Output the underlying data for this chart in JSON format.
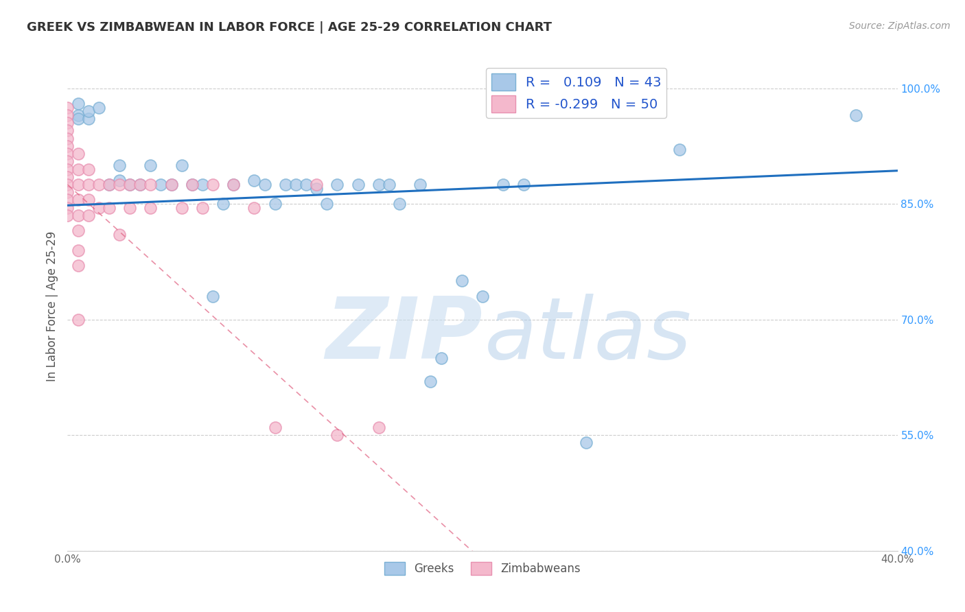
{
  "title": "GREEK VS ZIMBABWEAN IN LABOR FORCE | AGE 25-29 CORRELATION CHART",
  "source": "Source: ZipAtlas.com",
  "ylabel": "In Labor Force | Age 25-29",
  "xlim": [
    0.0,
    0.4
  ],
  "ylim": [
    0.4,
    1.035
  ],
  "yticks": [
    1.0,
    0.85,
    0.7,
    0.55,
    0.4
  ],
  "ytick_labels": [
    "100.0%",
    "85.0%",
    "70.0%",
    "55.0%",
    "40.0%"
  ],
  "xticks": [
    0.0,
    0.05,
    0.1,
    0.15,
    0.2,
    0.25,
    0.3,
    0.35,
    0.4
  ],
  "xtick_labels": [
    "0.0%",
    "",
    "",
    "",
    "",
    "",
    "",
    "",
    "40.0%"
  ],
  "greek_color": "#a8c8e8",
  "greek_edge_color": "#7ab0d4",
  "zimbabwean_color": "#f4b8cc",
  "zimbabwean_edge_color": "#e890b0",
  "greek_R": 0.109,
  "greek_N": 43,
  "zimbabwean_R": -0.299,
  "zimbabwean_N": 50,
  "trend_greek_color": "#1f6fbf",
  "trend_zimbabwean_color": "#e06080",
  "background_color": "#ffffff",
  "greek_points_x": [
    0.005,
    0.005,
    0.005,
    0.01,
    0.01,
    0.015,
    0.02,
    0.025,
    0.025,
    0.03,
    0.035,
    0.04,
    0.045,
    0.05,
    0.055,
    0.06,
    0.065,
    0.07,
    0.075,
    0.08,
    0.09,
    0.095,
    0.1,
    0.105,
    0.11,
    0.115,
    0.12,
    0.125,
    0.13,
    0.14,
    0.15,
    0.155,
    0.16,
    0.17,
    0.175,
    0.18,
    0.19,
    0.2,
    0.21,
    0.22,
    0.25,
    0.295,
    0.38
  ],
  "greek_points_y": [
    0.965,
    0.96,
    0.98,
    0.96,
    0.97,
    0.975,
    0.875,
    0.88,
    0.9,
    0.875,
    0.875,
    0.9,
    0.875,
    0.875,
    0.9,
    0.875,
    0.875,
    0.73,
    0.85,
    0.875,
    0.88,
    0.875,
    0.85,
    0.875,
    0.875,
    0.875,
    0.87,
    0.85,
    0.875,
    0.875,
    0.875,
    0.875,
    0.85,
    0.875,
    0.62,
    0.65,
    0.75,
    0.73,
    0.875,
    0.875,
    0.54,
    0.92,
    0.965
  ],
  "zimbabwean_points_x": [
    0.0,
    0.0,
    0.0,
    0.0,
    0.0,
    0.0,
    0.0,
    0.0,
    0.0,
    0.0,
    0.0,
    0.0,
    0.0,
    0.0,
    0.0,
    0.005,
    0.005,
    0.005,
    0.005,
    0.005,
    0.005,
    0.005,
    0.005,
    0.005,
    0.01,
    0.01,
    0.01,
    0.01,
    0.015,
    0.015,
    0.02,
    0.02,
    0.025,
    0.025,
    0.03,
    0.03,
    0.035,
    0.04,
    0.04,
    0.05,
    0.055,
    0.06,
    0.065,
    0.07,
    0.08,
    0.09,
    0.1,
    0.12,
    0.13,
    0.15
  ],
  "zimbabwean_points_y": [
    0.975,
    0.965,
    0.955,
    0.945,
    0.935,
    0.925,
    0.915,
    0.905,
    0.895,
    0.885,
    0.875,
    0.865,
    0.855,
    0.845,
    0.835,
    0.915,
    0.895,
    0.875,
    0.855,
    0.835,
    0.815,
    0.79,
    0.77,
    0.7,
    0.895,
    0.875,
    0.855,
    0.835,
    0.875,
    0.845,
    0.875,
    0.845,
    0.875,
    0.81,
    0.875,
    0.845,
    0.875,
    0.875,
    0.845,
    0.875,
    0.845,
    0.875,
    0.845,
    0.875,
    0.875,
    0.845,
    0.56,
    0.875,
    0.55,
    0.56
  ]
}
